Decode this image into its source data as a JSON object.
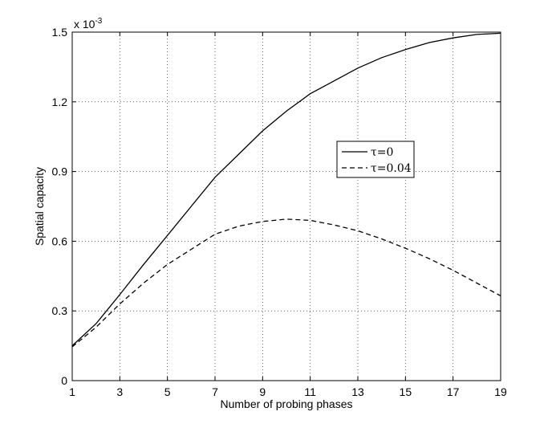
{
  "chart_data": {
    "type": "line",
    "title": "",
    "xlabel": "Number of probing phases",
    "ylabel": "Spatial capacity",
    "y_multiplier_label": "x 10",
    "y_multiplier_exponent": "-3",
    "xlim": [
      1,
      19
    ],
    "ylim": [
      0,
      1.5
    ],
    "xticks": [
      1,
      3,
      5,
      7,
      9,
      11,
      13,
      15,
      17,
      19
    ],
    "yticks": [
      0,
      0.3,
      0.6,
      0.9,
      1.2,
      1.5
    ],
    "ytick_labels": [
      "0",
      "0.3",
      "0.6",
      "0.9",
      "1.2",
      "1.5"
    ],
    "grid": true,
    "legend_position": "center-right",
    "x": [
      1,
      2,
      3,
      4,
      5,
      6,
      7,
      8,
      9,
      10,
      11,
      12,
      13,
      14,
      15,
      16,
      17,
      18,
      19
    ],
    "series": [
      {
        "name": "τ=0",
        "line_style": "solid",
        "color": "#000000",
        "values": [
          0.15,
          0.245,
          0.37,
          0.5,
          0.625,
          0.75,
          0.875,
          0.975,
          1.075,
          1.16,
          1.235,
          1.29,
          1.345,
          1.39,
          1.425,
          1.455,
          1.475,
          1.49,
          1.495
        ]
      },
      {
        "name": "τ=0.04",
        "line_style": "dashed",
        "color": "#000000",
        "values": [
          0.145,
          0.23,
          0.33,
          0.42,
          0.5,
          0.565,
          0.63,
          0.665,
          0.685,
          0.695,
          0.69,
          0.67,
          0.645,
          0.61,
          0.57,
          0.525,
          0.475,
          0.42,
          0.365
        ]
      }
    ]
  }
}
